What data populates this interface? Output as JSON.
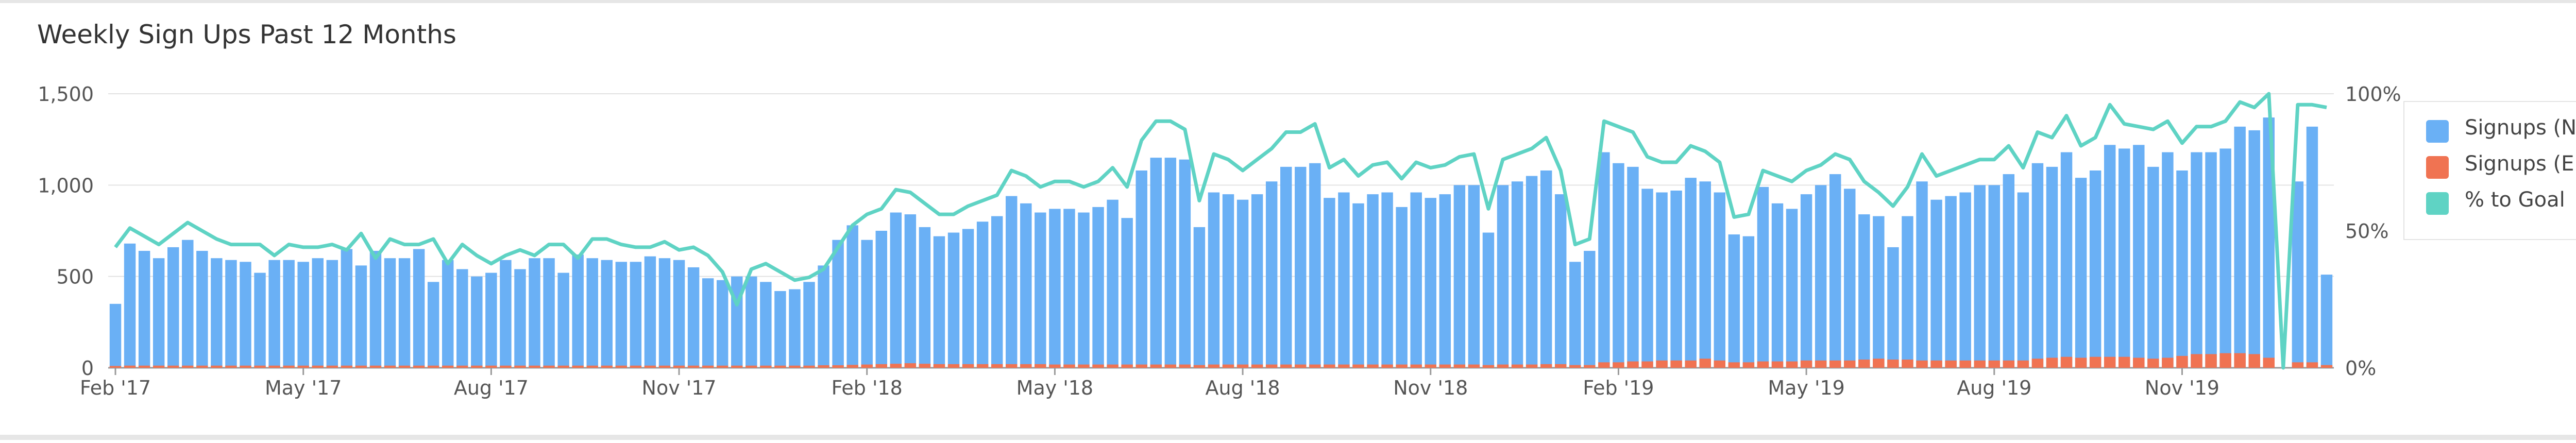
{
  "title": "Weekly Sign Ups Past 12 Months",
  "colors": {
    "net": "#6ab0f5",
    "eliminated": "#f07352",
    "goal": "#5fd3c4"
  },
  "icons": {
    "refresh": "refresh-icon",
    "edit": "pencil-icon"
  },
  "chart_data": {
    "type": "bar",
    "title": "Weekly Sign Ups Past 12 Months",
    "x_ticks": [
      "Feb '17",
      "May '17",
      "Aug '17",
      "Nov '17",
      "Feb '18",
      "May '18",
      "Aug '18",
      "Nov '18",
      "Feb '19",
      "May '19",
      "Aug '19",
      "Nov '19"
    ],
    "x_tick_weeks": [
      0,
      13,
      26,
      39,
      52,
      65,
      78,
      91,
      104,
      117,
      130,
      143
    ],
    "ylim": [
      0,
      1500
    ],
    "y_ticks": [
      "0",
      "500",
      "1,000",
      "1,500"
    ],
    "y2lim": [
      0,
      100
    ],
    "y2_ticks": [
      "0%",
      "50%",
      "100%"
    ],
    "grid": true,
    "legend_position": "right",
    "series": [
      {
        "name": "Signups (Net)",
        "type": "bar",
        "values": [
          350,
          680,
          640,
          600,
          660,
          700,
          640,
          600,
          590,
          580,
          520,
          590,
          590,
          580,
          600,
          590,
          650,
          560,
          640,
          600,
          600,
          650,
          470,
          590,
          540,
          500,
          520,
          590,
          540,
          600,
          600,
          520,
          620,
          600,
          590,
          580,
          580,
          610,
          600,
          590,
          550,
          490,
          480,
          500,
          500,
          470,
          420,
          430,
          470,
          560,
          700,
          780,
          700,
          750,
          850,
          840,
          770,
          720,
          740,
          760,
          800,
          830,
          940,
          900,
          850,
          870,
          870,
          850,
          880,
          920,
          820,
          1080,
          1150,
          1150,
          1140,
          770,
          960,
          950,
          920,
          950,
          1020,
          1100,
          1100,
          1120,
          930,
          960,
          900,
          950,
          960,
          880,
          960,
          930,
          950,
          1000,
          1000,
          740,
          1000,
          1020,
          1050,
          1080,
          950,
          580,
          640,
          1180,
          1120,
          1100,
          980,
          960,
          970,
          1040,
          1020,
          960,
          730,
          720,
          990,
          900,
          870,
          950,
          1000,
          1060,
          980,
          840,
          830,
          660,
          830,
          1020,
          920,
          940,
          960,
          1000,
          1000,
          1060,
          960,
          1120,
          1100,
          1180,
          1040,
          1080,
          1220,
          1200,
          1220,
          1100,
          1180,
          1080,
          1180,
          1180,
          1200,
          1320,
          1300,
          1370,
          0,
          1020,
          1320,
          510
        ],
        "values_note": ""
      },
      {
        "name": "Signups (Eliminated)",
        "type": "bar",
        "values": [
          10,
          12,
          12,
          12,
          12,
          12,
          12,
          12,
          12,
          12,
          12,
          12,
          12,
          12,
          12,
          12,
          12,
          12,
          12,
          12,
          12,
          12,
          12,
          12,
          12,
          12,
          12,
          12,
          12,
          12,
          12,
          12,
          12,
          12,
          12,
          12,
          12,
          12,
          12,
          12,
          12,
          12,
          12,
          12,
          12,
          12,
          12,
          12,
          12,
          14,
          14,
          16,
          18,
          20,
          22,
          25,
          22,
          20,
          20,
          20,
          20,
          20,
          20,
          20,
          20,
          18,
          18,
          18,
          18,
          18,
          18,
          18,
          18,
          18,
          18,
          15,
          18,
          18,
          18,
          18,
          18,
          18,
          18,
          18,
          18,
          18,
          18,
          18,
          18,
          18,
          18,
          18,
          18,
          18,
          18,
          15,
          18,
          18,
          18,
          20,
          20,
          15,
          15,
          30,
          30,
          35,
          35,
          40,
          40,
          40,
          50,
          40,
          30,
          30,
          35,
          35,
          35,
          40,
          40,
          40,
          40,
          45,
          50,
          45,
          45,
          40,
          40,
          40,
          40,
          40,
          40,
          40,
          40,
          50,
          55,
          60,
          55,
          60,
          60,
          60,
          55,
          50,
          55,
          65,
          75,
          75,
          80,
          80,
          75,
          55,
          0,
          30,
          30,
          15
        ]
      },
      {
        "name": "% to Goal",
        "type": "line",
        "values": [
          44,
          51,
          48,
          45,
          49,
          53,
          50,
          47,
          45,
          45,
          45,
          41,
          45,
          44,
          44,
          45,
          43,
          49,
          40,
          47,
          45,
          45,
          47,
          38,
          45,
          41,
          38,
          41,
          43,
          41,
          45,
          45,
          40,
          47,
          47,
          45,
          44,
          44,
          46,
          43,
          44,
          41,
          35,
          23,
          36,
          38,
          35,
          32,
          33,
          36,
          44,
          52,
          56,
          58,
          65,
          64,
          60,
          56,
          56,
          59,
          61,
          63,
          72,
          70,
          66,
          68,
          68,
          66,
          68,
          73,
          66,
          83,
          90,
          90,
          87,
          61,
          78,
          76,
          72,
          76,
          80,
          86,
          86,
          89,
          73,
          76,
          70,
          74,
          75,
          69,
          75,
          73,
          74,
          77,
          78,
          58,
          76,
          78,
          80,
          84,
          72,
          45,
          47,
          90,
          88,
          86,
          77,
          75,
          75,
          81,
          79,
          75,
          55,
          56,
          72,
          70,
          68,
          72,
          74,
          78,
          76,
          68,
          64,
          59,
          66,
          78,
          70,
          72,
          74,
          76,
          76,
          81,
          73,
          86,
          84,
          92,
          81,
          84,
          96,
          89,
          88,
          87,
          90,
          82,
          88,
          88,
          90,
          97,
          95,
          100,
          0,
          96,
          96,
          95
        ]
      }
    ]
  },
  "legend": [
    {
      "label": "Signups (Net)"
    },
    {
      "label": "Signups (Eliminated)"
    },
    {
      "label": "% to Goal"
    }
  ]
}
